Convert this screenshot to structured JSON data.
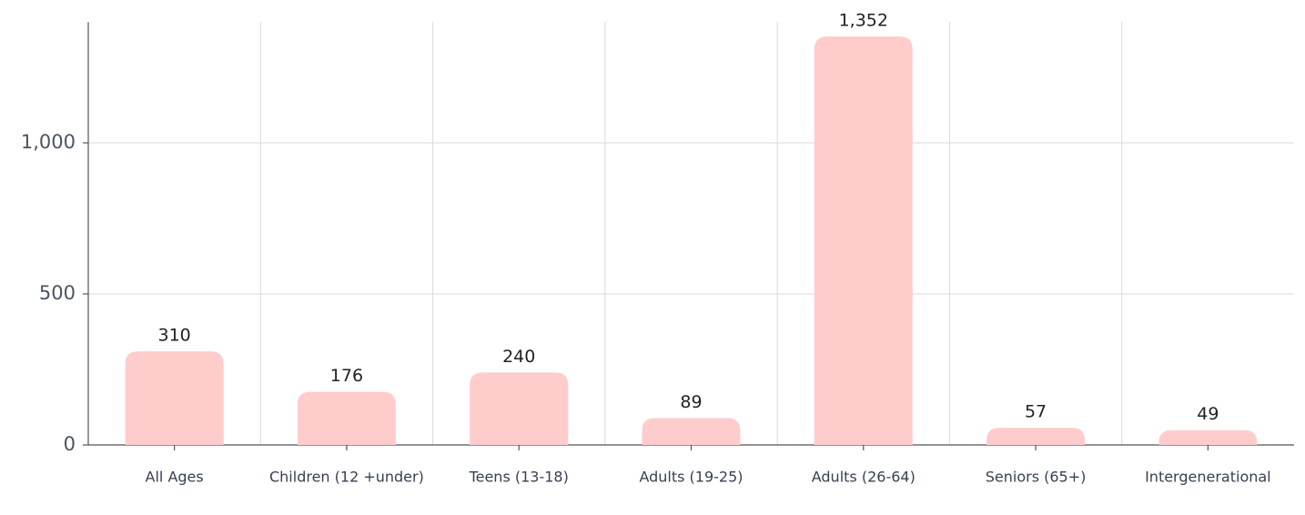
{
  "chart_data": {
    "type": "bar",
    "categories": [
      "All Ages",
      "Children (12 +under)",
      "Teens (13-18)",
      "Adults (19-25)",
      "Adults (26-64)",
      "Seniors (65+)",
      "Intergenerational"
    ],
    "values": [
      310,
      176,
      240,
      89,
      1352,
      57,
      49
    ],
    "value_labels": [
      "310",
      "176",
      "240",
      "89",
      "1,352",
      "57",
      "49"
    ],
    "color": "#ffcccc",
    "ylim": [
      0,
      1400
    ],
    "yticks": [
      0,
      500,
      {
        "value": 1000,
        "label": "1,000"
      }
    ],
    "grid": true
  }
}
